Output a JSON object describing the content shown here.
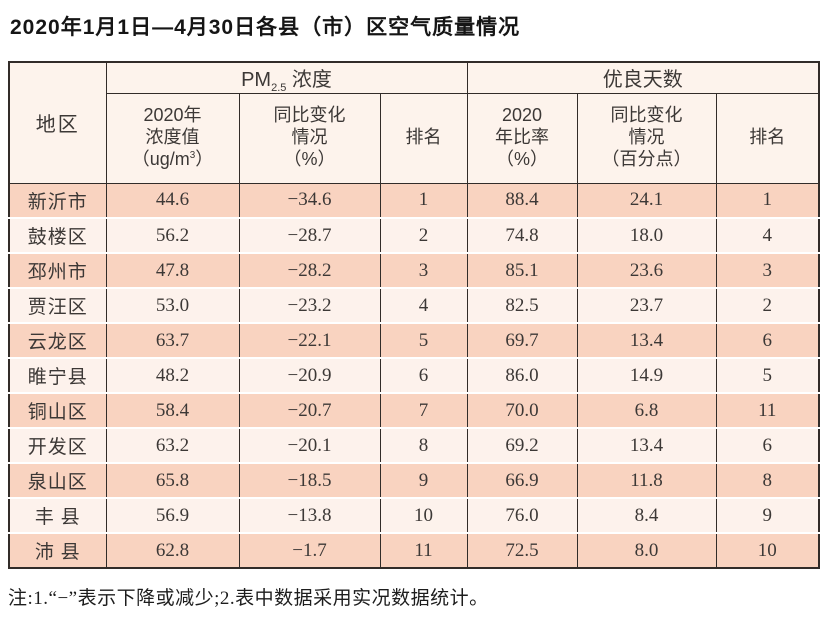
{
  "title": "2020年1月1日—4月30日各县（市）区空气质量情况",
  "table": {
    "header": {
      "area": "地区",
      "pm_group": {
        "prefix": "PM",
        "sub": "2.5",
        "suffix": " 浓度"
      },
      "days_group": "优良天数",
      "pm_value": {
        "l1": "2020年",
        "l2": "浓度值",
        "l3a": "（ug/m",
        "sup": "3",
        "l3b": "）"
      },
      "pm_change": {
        "l1": "同比变化",
        "l2": "情况",
        "l3": "（%）"
      },
      "pm_rank": "排名",
      "day_rate": {
        "l1": "2020",
        "l2": "年比率",
        "l3": "（%）"
      },
      "day_change": {
        "l1": "同比变化",
        "l2": "情况",
        "l3": "（百分点）"
      },
      "day_rank": "排名"
    },
    "rows": [
      {
        "area": "新沂市",
        "pm_value": "44.6",
        "pm_change": "−34.6",
        "pm_rank": "1",
        "day_rate": "88.4",
        "day_change": "24.1",
        "day_rank": "1"
      },
      {
        "area": "鼓楼区",
        "pm_value": "56.2",
        "pm_change": "−28.7",
        "pm_rank": "2",
        "day_rate": "74.8",
        "day_change": "18.0",
        "day_rank": "4"
      },
      {
        "area": "邳州市",
        "pm_value": "47.8",
        "pm_change": "−28.2",
        "pm_rank": "3",
        "day_rate": "85.1",
        "day_change": "23.6",
        "day_rank": "3"
      },
      {
        "area": "贾汪区",
        "pm_value": "53.0",
        "pm_change": "−23.2",
        "pm_rank": "4",
        "day_rate": "82.5",
        "day_change": "23.7",
        "day_rank": "2"
      },
      {
        "area": "云龙区",
        "pm_value": "63.7",
        "pm_change": "−22.1",
        "pm_rank": "5",
        "day_rate": "69.7",
        "day_change": "13.4",
        "day_rank": "6"
      },
      {
        "area": "睢宁县",
        "pm_value": "48.2",
        "pm_change": "−20.9",
        "pm_rank": "6",
        "day_rate": "86.0",
        "day_change": "14.9",
        "day_rank": "5"
      },
      {
        "area": "铜山区",
        "pm_value": "58.4",
        "pm_change": "−20.7",
        "pm_rank": "7",
        "day_rate": "70.0",
        "day_change": "6.8",
        "day_rank": "11"
      },
      {
        "area": "开发区",
        "pm_value": "63.2",
        "pm_change": "−20.1",
        "pm_rank": "8",
        "day_rate": "69.2",
        "day_change": "13.4",
        "day_rank": "6"
      },
      {
        "area": "泉山区",
        "pm_value": "65.8",
        "pm_change": "−18.5",
        "pm_rank": "9",
        "day_rate": "66.9",
        "day_change": "11.8",
        "day_rank": "8"
      },
      {
        "area": "丰 县",
        "pm_value": "56.9",
        "pm_change": "−13.8",
        "pm_rank": "10",
        "day_rate": "76.0",
        "day_change": "8.4",
        "day_rank": "9"
      },
      {
        "area": "沛 县",
        "pm_value": "62.8",
        "pm_change": "−1.7",
        "pm_rank": "11",
        "day_rate": "72.5",
        "day_change": "8.0",
        "day_rank": "10"
      }
    ]
  },
  "footnote": "注:1.“−”表示下降或减少;2.表中数据采用实况数据统计。",
  "colors": {
    "row_odd": "#f9d3c0",
    "row_even": "#fdf2ec",
    "header_bg": "#fdf3ec",
    "border": "#322c29",
    "text": "#3c3836"
  }
}
